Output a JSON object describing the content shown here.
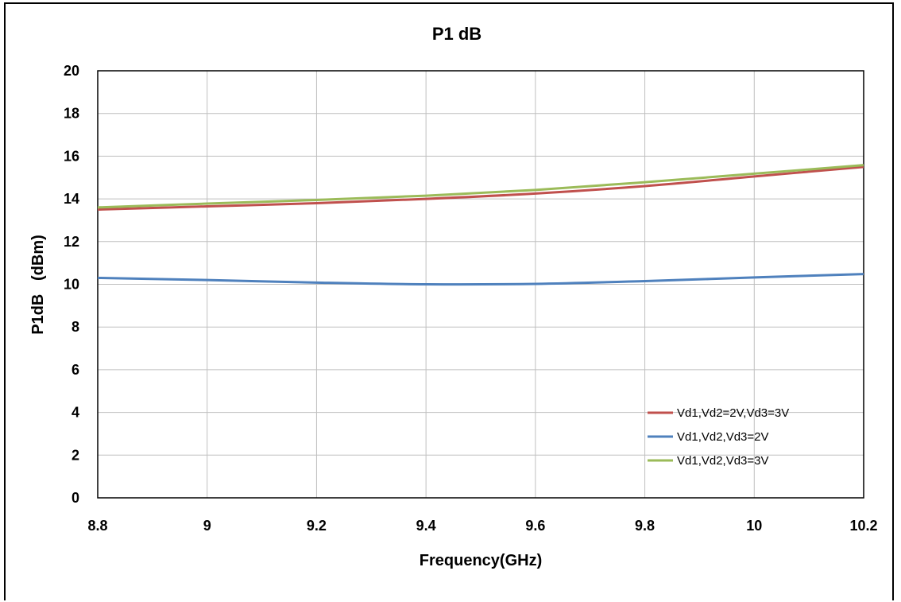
{
  "chart_data": {
    "type": "line",
    "title": "P1 dB",
    "xlabel": "Frequency(GHz)",
    "ylabel": "P1dB   (dBm)",
    "xlim": [
      8.8,
      10.2
    ],
    "ylim": [
      0,
      20
    ],
    "x_ticks": [
      "8.8",
      "9",
      "9.2",
      "9.4",
      "9.6",
      "9.8",
      "10",
      "10.2"
    ],
    "y_ticks": [
      "0",
      "2",
      "4",
      "6",
      "8",
      "10",
      "12",
      "14",
      "16",
      "18",
      "20"
    ],
    "grid": true,
    "legend_position": "bottom-right",
    "x": [
      8.8,
      9.0,
      9.2,
      9.4,
      9.6,
      9.8,
      10.0,
      10.2
    ],
    "series": [
      {
        "name": "Vd1,Vd2=2V,Vd3=3V",
        "color": "#C0504D",
        "values": [
          13.5,
          13.65,
          13.8,
          14.0,
          14.25,
          14.6,
          15.05,
          15.5
        ]
      },
      {
        "name": "Vd1,Vd2,Vd3=2V",
        "color": "#4F81BD",
        "values": [
          10.3,
          10.2,
          10.08,
          10.0,
          10.02,
          10.15,
          10.32,
          10.48
        ]
      },
      {
        "name": "Vd1,Vd2,Vd3=3V",
        "color": "#9BBB59",
        "values": [
          13.6,
          13.78,
          13.95,
          14.15,
          14.42,
          14.78,
          15.18,
          15.58
        ]
      }
    ]
  }
}
